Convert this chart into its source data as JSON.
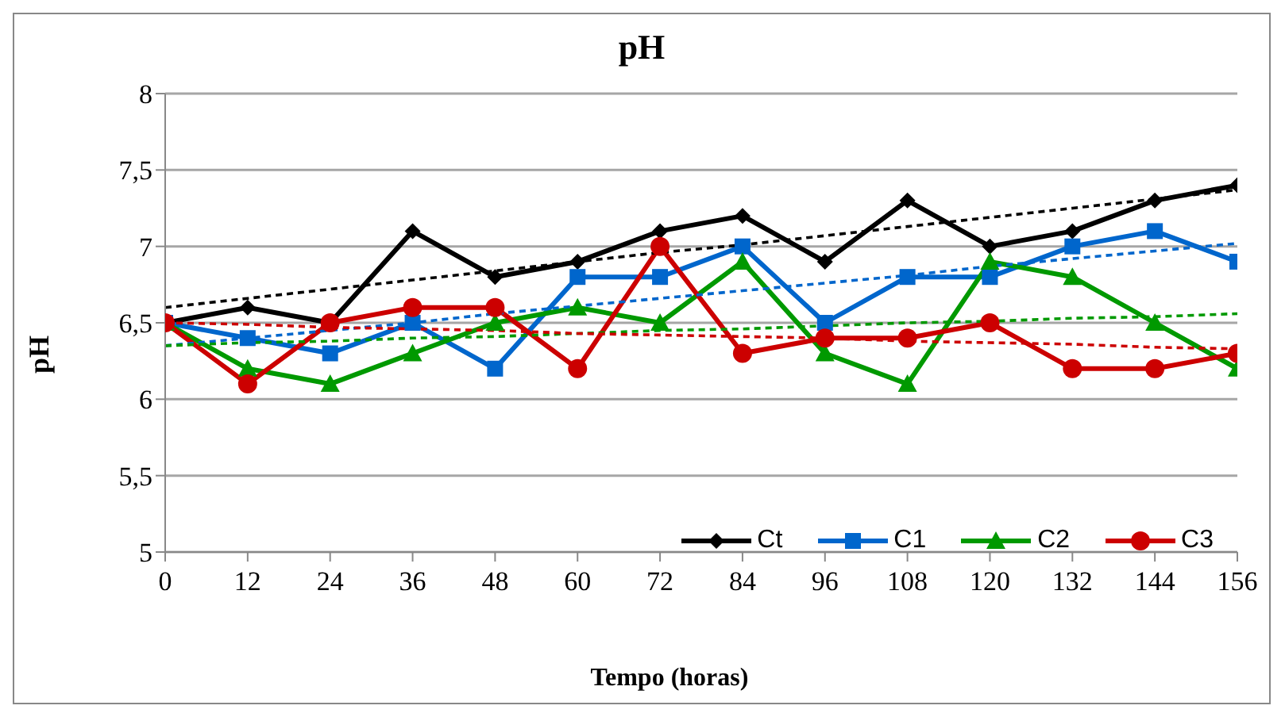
{
  "chart_data": {
    "type": "line",
    "title": "pH",
    "xlabel": "Tempo (horas)",
    "ylabel": "pH",
    "x": [
      0,
      12,
      24,
      36,
      48,
      60,
      72,
      84,
      96,
      108,
      120,
      132,
      144,
      156
    ],
    "xlim": [
      0,
      156
    ],
    "xticks": [
      0,
      12,
      24,
      36,
      48,
      60,
      72,
      84,
      96,
      108,
      120,
      132,
      144,
      156
    ],
    "ylim": [
      5,
      8
    ],
    "yticks": [
      5,
      {
        "value": 5.5,
        "label": "5,5"
      },
      6,
      {
        "value": 6.5,
        "label": "6,5"
      },
      7,
      {
        "value": 7.5,
        "label": "7,5"
      },
      8
    ],
    "grid": "y",
    "legend": "bottom right",
    "line_style": "solid",
    "series": [
      {
        "name": "Ct",
        "color": "#000000",
        "marker": "diamond",
        "values": [
          6.5,
          6.6,
          6.5,
          7.1,
          6.8,
          6.9,
          7.1,
          7.2,
          6.9,
          7.3,
          7.0,
          7.1,
          7.3,
          7.4
        ]
      },
      {
        "name": "C1",
        "color": "#0066cc",
        "marker": "square",
        "values": [
          6.5,
          6.4,
          6.3,
          6.5,
          6.2,
          6.8,
          6.8,
          7.0,
          6.5,
          6.8,
          6.8,
          7.0,
          7.1,
          6.9
        ]
      },
      {
        "name": "C2",
        "color": "#009900",
        "marker": "triangle",
        "values": [
          6.5,
          6.2,
          6.1,
          6.3,
          6.5,
          6.6,
          6.5,
          6.9,
          6.3,
          6.1,
          6.9,
          6.8,
          6.5,
          6.2
        ]
      },
      {
        "name": "C3",
        "color": "#cc0000",
        "marker": "circle",
        "values": [
          6.5,
          6.1,
          6.5,
          6.6,
          6.6,
          6.2,
          7.0,
          6.3,
          6.4,
          6.4,
          6.5,
          6.2,
          6.2,
          6.3
        ]
      },
      {
        "type": "line",
        "color": "#000000",
        "marker": "none",
        "line_style": "dashed",
        "values": [
          6.6,
          6.66,
          6.72,
          6.78,
          6.84,
          6.9,
          6.96,
          7.01,
          7.07,
          7.13,
          7.19,
          7.25,
          7.31,
          7.37
        ]
      },
      {
        "type": "line",
        "color": "#0066cc",
        "marker": "none",
        "line_style": "dashed",
        "values": [
          6.35,
          6.4,
          6.45,
          6.5,
          6.56,
          6.61,
          6.66,
          6.71,
          6.76,
          6.81,
          6.87,
          6.92,
          6.97,
          7.02
        ]
      },
      {
        "type": "line",
        "color": "#009900",
        "marker": "none",
        "line_style": "dashed",
        "values": [
          6.35,
          6.37,
          6.38,
          6.4,
          6.41,
          6.43,
          6.45,
          6.46,
          6.48,
          6.5,
          6.51,
          6.53,
          6.54,
          6.56
        ]
      },
      {
        "type": "line",
        "color": "#cc0000",
        "marker": "none",
        "line_style": "dashed",
        "values": [
          6.5,
          6.49,
          6.47,
          6.46,
          6.45,
          6.43,
          6.42,
          6.41,
          6.4,
          6.38,
          6.37,
          6.36,
          6.34,
          6.33
        ]
      }
    ]
  }
}
